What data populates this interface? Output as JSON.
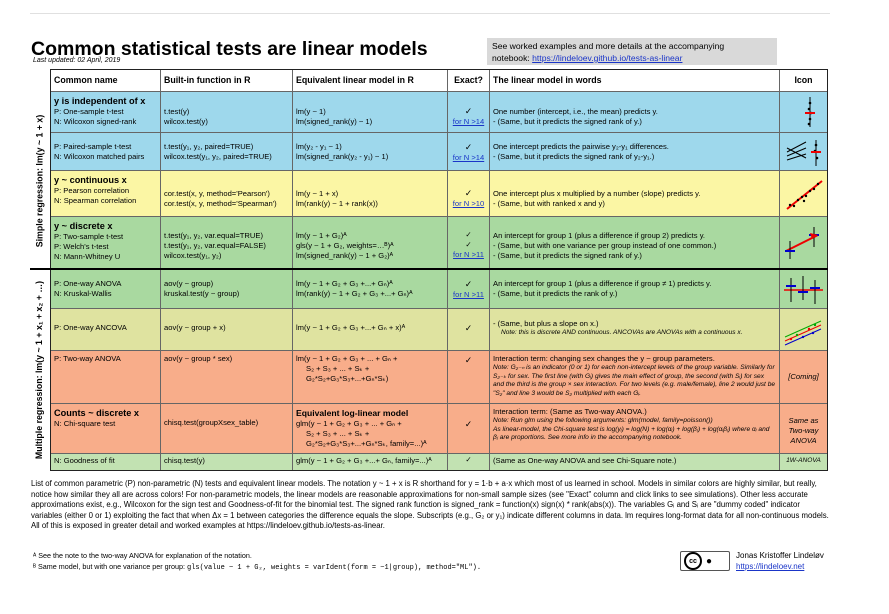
{
  "title": "Common statistical tests are linear models",
  "updated": "Last updated: 02 April, 2019",
  "notebox": {
    "line1": "See worked examples and more details at the accompanying",
    "prefix": "notebook: ",
    "link": "https://lindeloev.github.io/tests-as-linear"
  },
  "headers": {
    "name": "Common name",
    "builtin": "Built-in function in R",
    "model": "Equivalent linear model in R",
    "exact": "Exact?",
    "words": "The linear model in words",
    "icon": "Icon"
  },
  "side_labels": {
    "simple": "Simple regression: lm(y ~ 1 + x)",
    "multiple": "Multiple regression: lm(y ~ 1 + x₁ + x₂ + …)"
  },
  "rows": {
    "r1": {
      "title": "y is independent of x",
      "n1": "P: One-sample t-test",
      "n2": "N: Wilcoxon signed-rank",
      "b1": "t.test(y)",
      "b2": "wilcox.test(y)",
      "m1": "lm(y ~ 1)",
      "m2": "lm(signed_rank(y) ~ 1)",
      "e1": "✓",
      "e2": "for N >14",
      "w1": "One number (intercept, i.e., the mean) predicts y.",
      "w2": "- (Same, but it predicts the signed rank of y.)"
    },
    "r2": {
      "n1": "P: Paired-sample t-test",
      "n2": "N: Wilcoxon matched pairs",
      "b1": "t.test(y₁, y₂, paired=TRUE)",
      "b2": "wilcox.test(y₁, y₂, paired=TRUE)",
      "m1": "lm(y₂ - y₁ ~ 1)",
      "m2": "lm(signed_rank(y₂ - y₁) ~ 1)",
      "e1": "✓",
      "e2": "for N >14",
      "w1": "One intercept predicts the pairwise y₂-y₁ differences.",
      "w2": "- (Same, but it predicts the signed rank of y₂-y₁.)"
    },
    "r3": {
      "title": "y ~ continuous x",
      "n1": "P: Pearson correlation",
      "n2": "N: Spearman correlation",
      "b1": "cor.test(x, y, method='Pearson')",
      "b2": "cor.test(x, y, method='Spearman')",
      "m1": "lm(y ~ 1 + x)",
      "m2": "lm(rank(y) ~ 1 + rank(x))",
      "e1": "✓",
      "e2": "for N >10",
      "w1": "One intercept plus x multiplied by a number (slope) predicts y.",
      "w2": "- (Same, but with ranked x and y)"
    },
    "r4": {
      "title": "y ~ discrete x",
      "n1": "P: Two-sample t-test",
      "n2": "P: Welch's t-test",
      "n3": "N: Mann-Whitney U",
      "b1": "t.test(y₁, y₂, var.equal=TRUE)",
      "b2": "t.test(y₁, y₂, var.equal=FALSE)",
      "b3": "wilcox.test(y₁, y₂)",
      "m1": "lm(y ~ 1 + G₂)ᴬ",
      "m2": "gls(y ~ 1 + G₂, weights=…ᴮ)ᴬ",
      "m3": "lm(signed_rank(y) ~ 1 + G₂)ᴬ",
      "e1": "✓",
      "e2": "✓",
      "e3": "for N >11",
      "w1": "An intercept for group 1 (plus a difference if group 2) predicts y.",
      "w2": "- (Same, but with one variance per group instead of one common.)",
      "w3": "- (Same, but it predicts the signed rank of y.)"
    },
    "r5": {
      "n1": "P: One-way ANOVA",
      "n2": "N: Kruskal-Wallis",
      "b1": "aov(y ~ group)",
      "b2": "kruskal.test(y ~ group)",
      "m1": "lm(y ~ 1 + G₂ + G₃ +...+ Gₙ)ᴬ",
      "m2": "lm(rank(y) ~ 1 + G₂ + G₃ +...+ Gₙ)ᴬ",
      "e1": "✓",
      "e2": "for N >11",
      "w1": "An intercept for group 1 (plus a difference if group ≠ 1) predicts y.",
      "w2": "- (Same, but it predicts the rank of y.)"
    },
    "r6": {
      "n1": "P: One-way ANCOVA",
      "b1": "aov(y ~ group + x)",
      "m1": "lm(y ~ 1 + G₂ + G₃ +...+ Gₙ + x)ᴬ",
      "e1": "✓",
      "w1": "- (Same, but plus a slope on x.)",
      "w2": "Note: this is discrete AND continuous. ANCOVAs are ANOVAs with a continuous x."
    },
    "r7": {
      "n1": "P: Two-way ANOVA",
      "b1": "aov(y ~ group * sex)",
      "m1": "lm(y ~ 1 + G₂ + G₃ + ... + Gₙ +",
      "m2": "S₂ + S₃ + ... + Sₖ +",
      "m3": "G₂*S₂+G₃*S₃+...+Gₙ*Sₖ)",
      "e1": "✓",
      "w1": "Interaction term: changing sex changes the y ~ group parameters.",
      "w2": "Note: G₂₋ₙ is an indicator (0 or 1) for each non-intercept levels of the group variable. Similarly for S₂₋ₖ for sex. The first line (with Gᵢ) gives the main effect of group, the second (with Sᵢ) for sex and the third is the group × sex interaction. For two levels (e.g. male/female), line 2 would just be \"S₂\" and line 3 would be S₂ multiplied with each Gᵢ.",
      "icon": "[Coming]"
    },
    "r8": {
      "title": "Counts ~ discrete x",
      "n1": "N: Chi-square test",
      "b1": "chisq.test(groupXsex_table)",
      "mtitle": "Equivalent log-linear model",
      "m1": "glm(y ~ 1 + G₂ + G₃ + ... + Gₙ +",
      "m2": "S₂ + S₃ + ... + Sₖ +",
      "m3": "G₂*S₂+G₃*S₃+...+Gₙ*Sₖ, family=...)ᴬ",
      "e1": "✓",
      "w1": "Interaction term: (Same as Two-way ANOVA.)",
      "w2": "Note: Run glm using the following arguments: glm(model, family=poisson())",
      "w3": "As linear-model, the Chi-square test is log(yᵢ) = log(N) + log(αᵢ) + log(βⱼ) + log(αᵢβⱼ) where αᵢ and βⱼ are proportions. See more info in the accompanying notebook.",
      "icon": "Same as Two-way ANOVA"
    },
    "r9": {
      "n1": "N: Goodness of fit",
      "b1": "chisq.test(y)",
      "m1": "glm(y ~ 1 + G₂ + G₃ +...+ Gₙ, family=...)ᴬ",
      "e1": "✓",
      "w1": "(Same as One-way ANOVA and see Chi-Square note.)",
      "icon": "1W-ANOVA"
    }
  },
  "footer": "List of common parametric (P) non-parametric (N) tests and equivalent linear models. The notation y ~ 1 + x is R shorthand for y = 1·b + a·x which most of us learned in school. Models in similar colors are highly similar, but really, notice how similar they all are across colors! For non-parametric models, the linear models are reasonable approximations for non-small sample sizes (see \"Exact\" column and click links to see simulations). Other less accurate approximations exist, e.g., Wilcoxon for the sign test and Goodness-of-fit for the binomial test. The signed rank function is signed_rank = function(x) sign(x) * rank(abs(x)). The variables Gᵢ and Sᵢ are \"dummy coded\" indicator variables (either 0 or 1) exploiting the fact that when Δx = 1 between categories the difference equals the slope. Subscripts (e.g., G₂ or y₁) indicate different columns in data. lm requires long-format data for all non-continuous models. All of this is exposed in greater detail and worked examples at https://lindeloev.github.io/tests-as-linear.",
  "fn1": "ᴬ See the note to the two-way ANOVA for explanation of the notation.",
  "fn2_prefix": "ᴮ Same model, but with one variance per group: ",
  "fn2_code": "gls(value ~ 1 + G₂, weights = varIdent(form = ~1|group), method=\"ML\").",
  "author": "Jonas Kristoffer Lindeløv",
  "author_link": "https://lindeloev.net",
  "cc_label": "cc"
}
